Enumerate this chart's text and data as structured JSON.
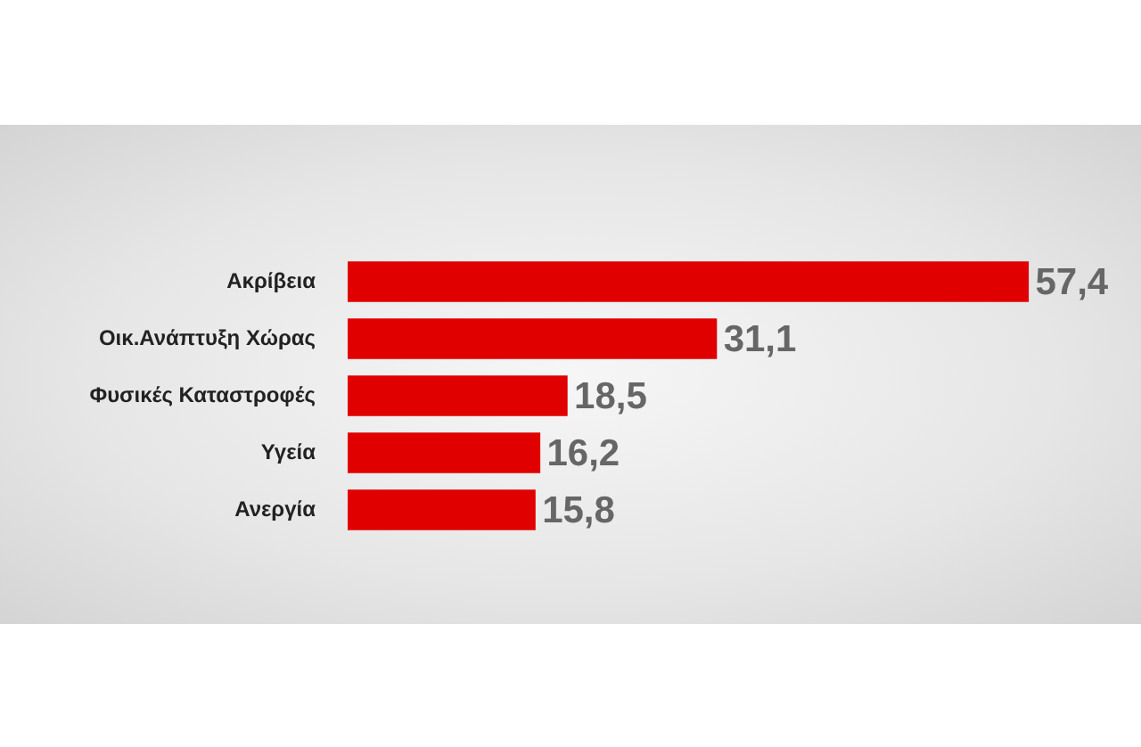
{
  "chart_data": {
    "type": "bar",
    "orientation": "horizontal",
    "categories": [
      "Ακρίβεια",
      "Οικ.Ανάπτυξη Χώρας",
      "Φυσικές Καταστροφές",
      "Υγεία",
      "Ανεργία"
    ],
    "values": [
      57.4,
      31.1,
      18.5,
      16.2,
      15.8
    ],
    "value_labels": [
      "57,4",
      "31,1",
      "18,5",
      "16,2",
      "15,8"
    ],
    "color": "#e00000"
  }
}
